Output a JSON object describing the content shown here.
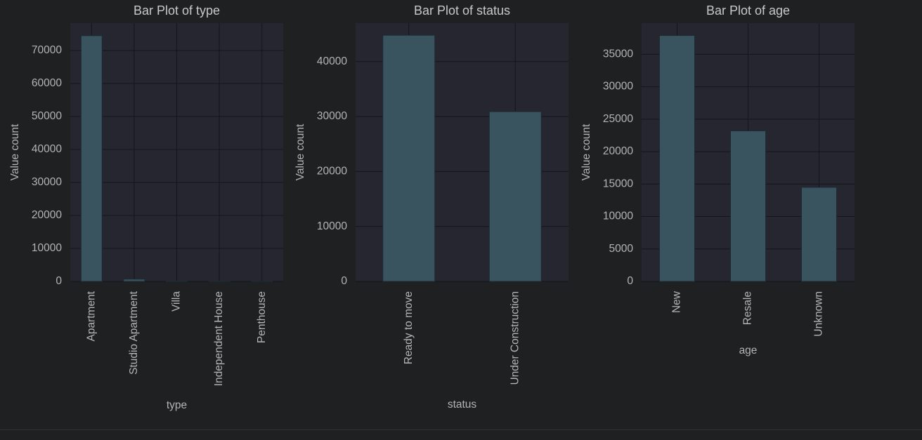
{
  "figure": {
    "background": "#1f2022",
    "panel_background": "#252630",
    "grid_color": "#14151a",
    "bar_color": "#39535f",
    "text_color": "#b4b4b4"
  },
  "chart_data": [
    {
      "type": "bar",
      "title": "Bar Plot of type",
      "xlabel": "type",
      "ylabel": "Value count",
      "categories": [
        "Apartment",
        "Studio Apartment",
        "Villa",
        "Independent House",
        "Penthouse"
      ],
      "values": [
        74500,
        700,
        120,
        90,
        40
      ],
      "ylim": [
        0,
        78300
      ],
      "yticks": [
        0,
        10000,
        20000,
        30000,
        40000,
        50000,
        60000,
        70000
      ],
      "grid": true
    },
    {
      "type": "bar",
      "title": "Bar Plot of status",
      "xlabel": "status",
      "ylabel": "Value count",
      "categories": [
        "Ready to move",
        "Under Construction"
      ],
      "values": [
        44800,
        30900
      ],
      "ylim": [
        0,
        47000
      ],
      "yticks": [
        0,
        10000,
        20000,
        30000,
        40000
      ],
      "grid": true
    },
    {
      "type": "bar",
      "title": "Bar Plot of age",
      "xlabel": "age",
      "ylabel": "Value count",
      "categories": [
        "New",
        "Resale",
        "Unknown"
      ],
      "values": [
        37900,
        23200,
        14500
      ],
      "ylim": [
        0,
        39800
      ],
      "yticks": [
        0,
        5000,
        10000,
        15000,
        20000,
        25000,
        30000,
        35000
      ],
      "grid": true
    }
  ]
}
